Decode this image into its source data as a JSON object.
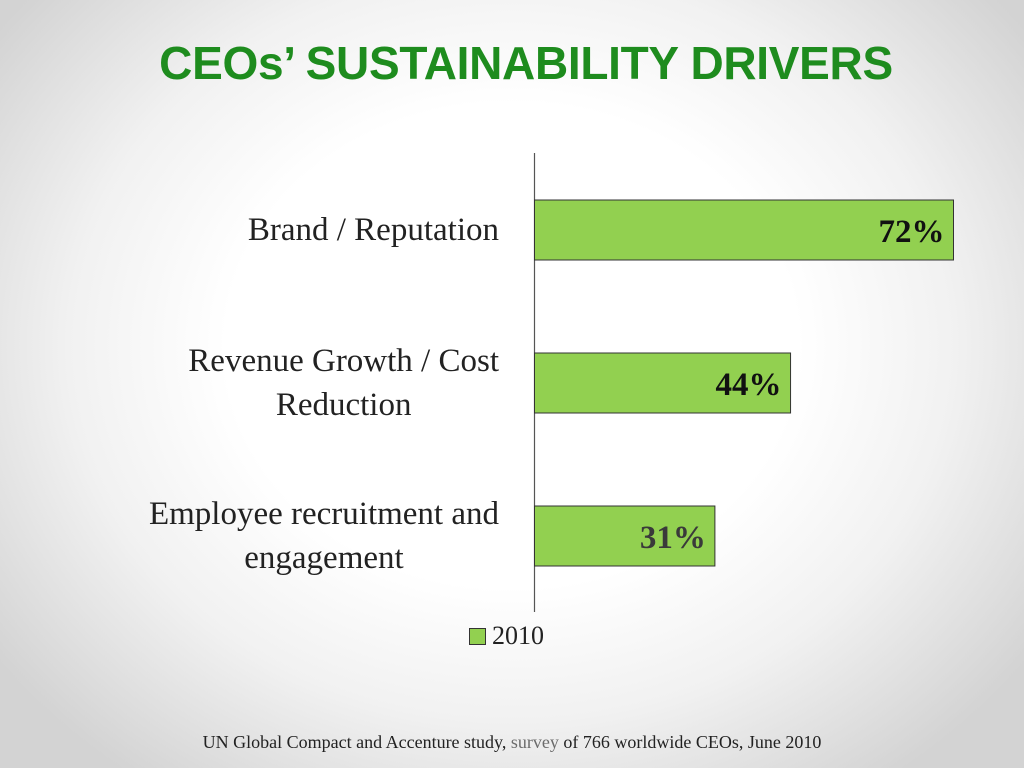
{
  "slide": {
    "title": "CEOs’ SUSTAINABILITY DRIVERS",
    "source_prefix": "UN Global Compact and Accenture study,",
    "source_link": "survey",
    "source_suffix": "of 766 worldwide CEOs, June 2010"
  },
  "chart_data": {
    "type": "bar",
    "orientation": "horizontal",
    "categories": [
      "Brand / Reputation",
      "Revenue Growth / Cost Reduction",
      "Employee recruitment and engagement"
    ],
    "category_lines": [
      [
        "Brand / Reputation"
      ],
      [
        "Revenue Growth / Cost",
        "Reduction"
      ],
      [
        "Employee recruitment and",
        "engagement"
      ]
    ],
    "series": [
      {
        "name": "2010",
        "values": [
          72,
          44,
          31
        ],
        "labels": [
          "72%",
          "44%",
          "31%"
        ],
        "color": "#92d050"
      }
    ],
    "xlim": [
      0,
      72
    ],
    "legend_position": "bottom",
    "grid": false
  }
}
